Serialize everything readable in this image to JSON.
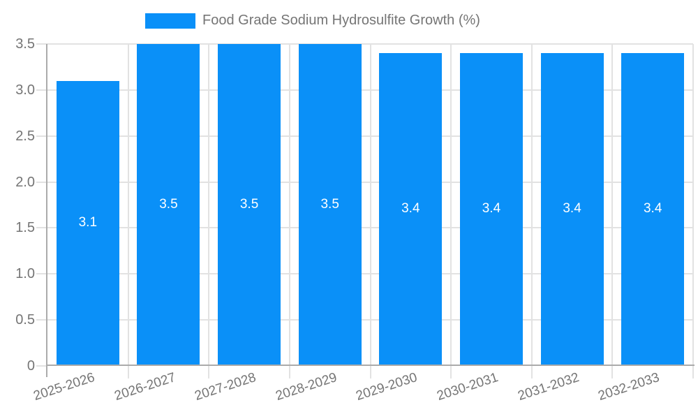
{
  "legend": {
    "label": "Food Grade Sodium Hydrosulfite Growth (%)"
  },
  "colors": {
    "bar": "#0a90f8",
    "grid": "#e2e2e2",
    "axis": "#ababab",
    "tick_text": "#757575",
    "legend_text": "#757575",
    "value_label_text": "#ffffff",
    "background": "#ffffff"
  },
  "chart_data": {
    "type": "bar",
    "title": "",
    "xlabel": "",
    "ylabel": "",
    "categories": [
      "2025-2026",
      "2026-2027",
      "2027-2028",
      "2028-2029",
      "2029-2030",
      "2030-2031",
      "2031-2032",
      "2032-2033"
    ],
    "series": [
      {
        "name": "Food Grade Sodium Hydrosulfite Growth (%)",
        "color": "#0a90f8",
        "values": [
          3.1,
          3.5,
          3.5,
          3.5,
          3.4,
          3.4,
          3.4,
          3.4
        ],
        "value_labels": [
          "3.1",
          "3.5",
          "3.5",
          "3.5",
          "3.4",
          "3.4",
          "3.4",
          "3.4"
        ]
      }
    ],
    "ylim": [
      0,
      3.5
    ],
    "ytick_step": 0.5,
    "yticks": [
      {
        "value": 0,
        "label": "0"
      },
      {
        "value": 0.5,
        "label": "0.5"
      },
      {
        "value": 1,
        "label": "1.0"
      },
      {
        "value": 1.5,
        "label": "1.5"
      },
      {
        "value": 2,
        "label": "2.0"
      },
      {
        "value": 2.5,
        "label": "2.5"
      },
      {
        "value": 3,
        "label": "3.0"
      },
      {
        "value": 3.5,
        "label": "3.5"
      }
    ],
    "grid": true,
    "legend_position": "top-center",
    "value_labels_position": "inside-center",
    "x_tick_rotation_deg": -18
  }
}
